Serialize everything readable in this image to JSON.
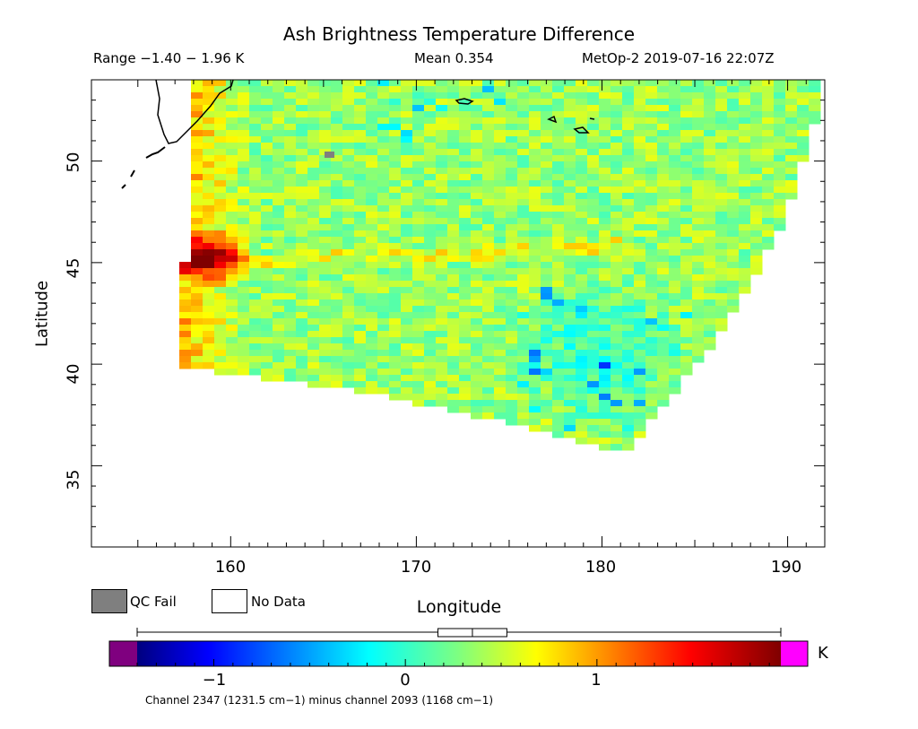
{
  "header": {
    "title": "Ash Brightness Temperature Difference",
    "range": "Range −1.40 − 1.96 K",
    "mean": "Mean 0.354",
    "satellite_time": "MetOp-2 2019-07-16 22:07Z"
  },
  "axes": {
    "xlabel": "Longitude",
    "ylabel": "Latitude",
    "x_ticks": [
      "160",
      "170",
      "180",
      "190"
    ],
    "y_ticks": [
      "35",
      "40",
      "45",
      "50"
    ],
    "x_range": [
      152.5,
      192
    ],
    "y_range": [
      31,
      54
    ]
  },
  "legend": {
    "qc_fail": "QC Fail",
    "no_data": "No Data",
    "qc_color": "#7f7f7f"
  },
  "colorbar": {
    "ticks": [
      "−1",
      "0",
      "1"
    ],
    "units": "K",
    "range": [
      -1.4,
      1.96
    ],
    "under_color": "#7f007f",
    "over_color": "#ff00ff",
    "box_whisker": {
      "min": -1.4,
      "q1": 0.17,
      "median": 0.35,
      "q3": 0.53,
      "max": 1.96
    }
  },
  "footer": {
    "channel_note": "Channel 2347 (1231.5 cm−1) minus channel 2093 (1168 cm−1)"
  },
  "map": {
    "swath_corners_lonlat": {
      "nw": [
        157.8,
        54
      ],
      "sw": [
        157.4,
        39.8
      ],
      "se": [
        181.2,
        35.6
      ],
      "ne": [
        192,
        54
      ]
    },
    "hotspot": {
      "lon": 159,
      "lat": 45.3,
      "value": 1.9
    },
    "ash_band_lat": 45,
    "cold_region": {
      "lon": 180,
      "lat": 40.5
    }
  }
}
